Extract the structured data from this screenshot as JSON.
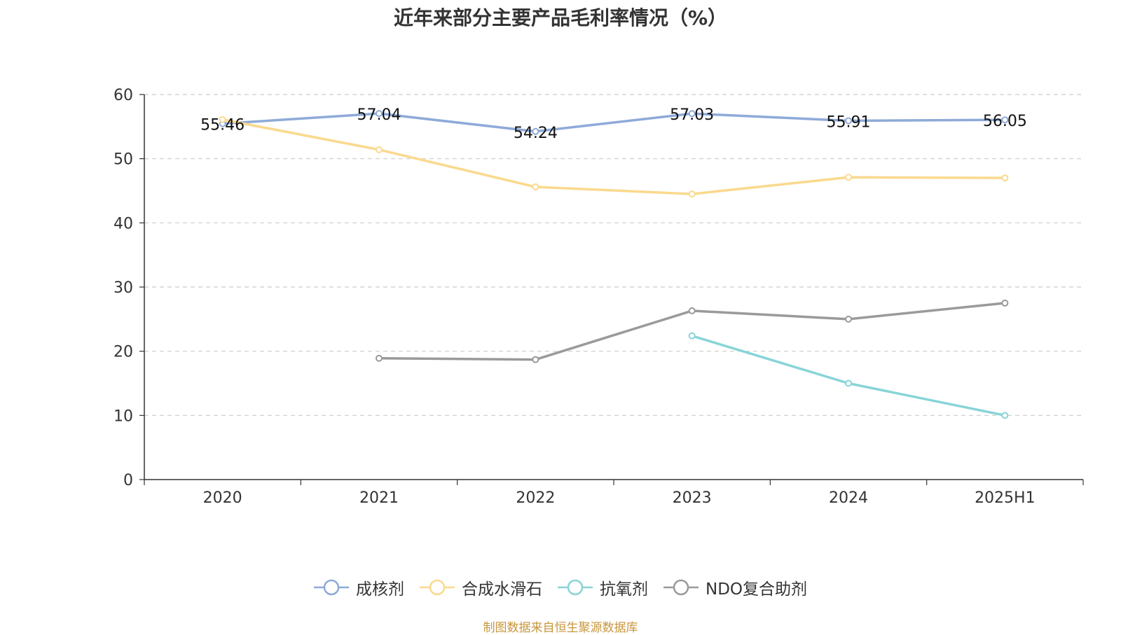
{
  "chart_data": {
    "type": "line",
    "title": "近年来部分主要产品毛利率情况（%）",
    "categories": [
      "2020",
      "2021",
      "2022",
      "2023",
      "2024",
      "2025H1"
    ],
    "ylim": [
      0,
      60
    ],
    "yticks": [
      0,
      10,
      20,
      30,
      40,
      50,
      60
    ],
    "grid": true,
    "legend_position": "bottom",
    "series": [
      {
        "name": "成核剂",
        "color": "#8eaad8",
        "values": [
          55.46,
          57.04,
          54.24,
          57.03,
          55.91,
          56.05
        ],
        "show_labels": true
      },
      {
        "name": "合成水滑石",
        "color": "#fad98e",
        "values": [
          56.1,
          51.4,
          45.6,
          44.5,
          47.1,
          47.0
        ],
        "show_labels": false
      },
      {
        "name": "抗氧剂",
        "color": "#88d4d8",
        "values": [
          null,
          null,
          null,
          22.4,
          15.0,
          10.0
        ],
        "show_labels": false
      },
      {
        "name": "NDO复合助剂",
        "color": "#9a9a9a",
        "values": [
          null,
          18.9,
          18.7,
          26.3,
          25.0,
          27.5
        ],
        "show_labels": false
      }
    ]
  },
  "source_note": "制图数据来自恒生聚源数据库"
}
